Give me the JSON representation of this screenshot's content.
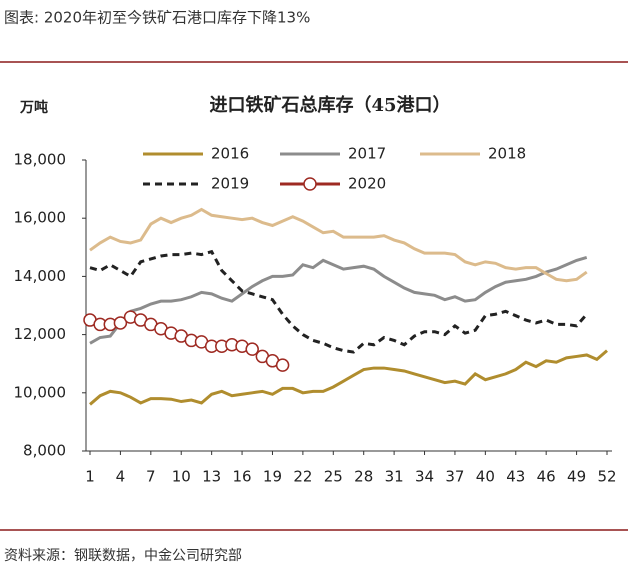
{
  "caption": "图表: 2020年初至今铁矿石港口库存下降13%",
  "source": "资料来源：钢联数据，中金公司研究部",
  "chart_data": {
    "type": "line",
    "title": "进口铁矿石总库存（45港口）",
    "y_label": "万吨",
    "x": [
      1,
      2,
      3,
      4,
      5,
      6,
      7,
      8,
      9,
      10,
      11,
      12,
      13,
      14,
      15,
      16,
      17,
      18,
      19,
      20,
      21,
      22,
      23,
      24,
      25,
      26,
      27,
      28,
      29,
      30,
      31,
      32,
      33,
      34,
      35,
      36,
      37,
      38,
      39,
      40,
      41,
      42,
      43,
      44,
      45,
      46,
      47,
      48,
      49,
      50,
      51,
      52
    ],
    "xlim": [
      1,
      52
    ],
    "xticks": [
      1,
      4,
      7,
      10,
      13,
      16,
      19,
      22,
      25,
      28,
      31,
      34,
      37,
      40,
      43,
      46,
      49,
      52
    ],
    "ylim": [
      8000,
      18000
    ],
    "yticks": [
      {
        "value": 8000,
        "label": "8,000"
      },
      {
        "value": 10000,
        "label": "10,000"
      },
      {
        "value": 12000,
        "label": "12,000"
      },
      {
        "value": 14000,
        "label": "14,000"
      },
      {
        "value": 16000,
        "label": "16,000"
      },
      {
        "value": 18000,
        "label": "18,000"
      }
    ],
    "series": [
      {
        "name": "2016",
        "color": "#b08d2e",
        "style": "solid",
        "values": [
          9600,
          9900,
          10050,
          10000,
          9850,
          9650,
          9800,
          9800,
          9780,
          9700,
          9750,
          9650,
          9950,
          10050,
          9900,
          9950,
          10000,
          10050,
          9950,
          10150,
          10150,
          10000,
          10050,
          10050,
          10200,
          10400,
          10600,
          10800,
          10850,
          10850,
          10800,
          10750,
          10650,
          10550,
          10450,
          10350,
          10400,
          10300,
          10650,
          10450,
          10550,
          10650,
          10800,
          11050,
          10900,
          11100,
          11050,
          11200,
          11250,
          11300,
          11150,
          11450
        ]
      },
      {
        "name": "2017",
        "color": "#8c8c8c",
        "style": "solid",
        "values": [
          11700,
          11900,
          11950,
          12400,
          12800,
          12900,
          13050,
          13150,
          13150,
          13200,
          13300,
          13450,
          13400,
          13250,
          13150,
          13400,
          13650,
          13850,
          14000,
          14000,
          14050,
          14400,
          14300,
          14550,
          14400,
          14250,
          14300,
          14350,
          14250,
          14000,
          13800,
          13600,
          13450,
          13400,
          13350,
          13200,
          13300,
          13150,
          13200,
          13450,
          13650,
          13800,
          13850,
          13900,
          14000,
          14150,
          14250,
          14400,
          14550,
          14650,
          null,
          null
        ]
      },
      {
        "name": "2018",
        "color": "#dcbb8c",
        "style": "solid",
        "values": [
          14900,
          15150,
          15350,
          15200,
          15150,
          15250,
          15800,
          16000,
          15850,
          16000,
          16100,
          16300,
          16100,
          16050,
          16000,
          15950,
          16000,
          15850,
          15750,
          15900,
          16050,
          15900,
          15700,
          15500,
          15550,
          15350,
          15350,
          15350,
          15350,
          15400,
          15250,
          15150,
          14950,
          14800,
          14800,
          14800,
          14750,
          14500,
          14400,
          14500,
          14450,
          14300,
          14250,
          14300,
          14300,
          14100,
          13900,
          13850,
          13900,
          14150,
          null,
          null
        ]
      },
      {
        "name": "2019",
        "color": "#222222",
        "style": "dashed",
        "values": [
          14300,
          14200,
          14400,
          14200,
          14000,
          14500,
          14600,
          14700,
          14750,
          14750,
          14800,
          14750,
          14850,
          14200,
          13850,
          13500,
          13400,
          13300,
          13200,
          12700,
          12300,
          12000,
          11800,
          11700,
          11550,
          11450,
          11400,
          11700,
          11650,
          11900,
          11800,
          11650,
          11950,
          12100,
          12100,
          12000,
          12300,
          12050,
          12150,
          12650,
          12700,
          12800,
          12650,
          12500,
          12400,
          12500,
          12350,
          12350,
          12300,
          12700,
          null,
          null
        ]
      },
      {
        "name": "2020",
        "color": "#9e2a22",
        "style": "solid",
        "marker": "circle",
        "values": [
          12500,
          12350,
          12350,
          12400,
          12600,
          12500,
          12350,
          12200,
          12050,
          11950,
          11800,
          11750,
          11600,
          11600,
          11650,
          11600,
          11500,
          11250,
          11100,
          10950,
          null,
          null,
          null,
          null,
          null,
          null,
          null,
          null,
          null,
          null,
          null,
          null,
          null,
          null,
          null,
          null,
          null,
          null,
          null,
          null,
          null,
          null,
          null,
          null,
          null,
          null,
          null,
          null,
          null,
          null,
          null,
          null
        ]
      }
    ]
  }
}
